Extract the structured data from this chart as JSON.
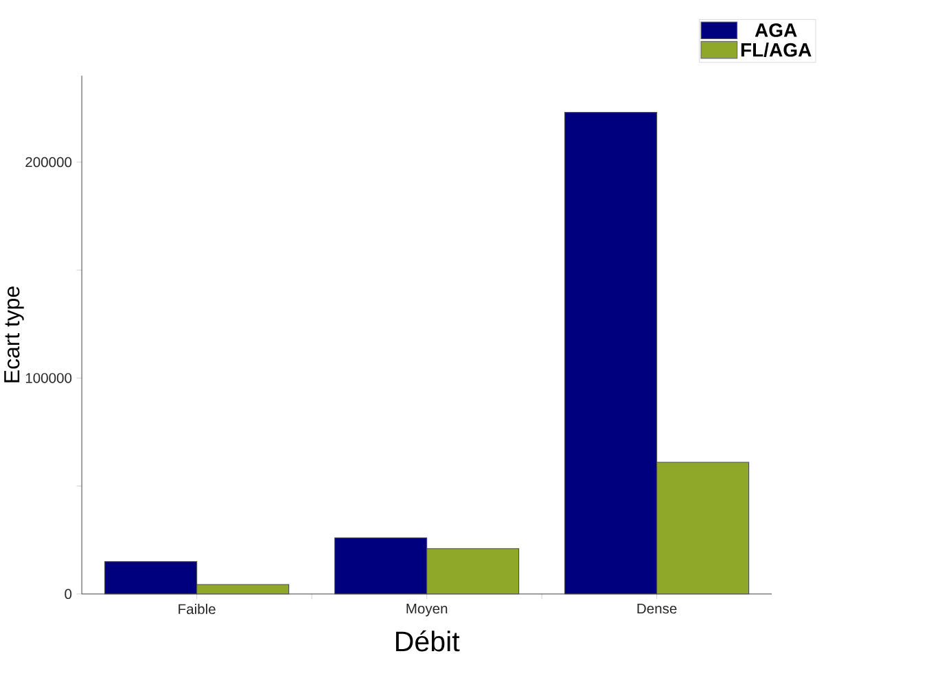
{
  "chart_data": {
    "type": "bar",
    "xlabel": "Débit",
    "ylabel": "Ecart type",
    "categories": [
      "Faible",
      "Moyen",
      "Dense"
    ],
    "series": [
      {
        "name": "AGA",
        "color": "#00007f",
        "values": [
          15000,
          26000,
          223000
        ]
      },
      {
        "name": "FL/AGA",
        "color": "#8fa82a",
        "values": [
          4400,
          21000,
          61000
        ]
      }
    ],
    "ylim": [
      0,
      240000
    ],
    "yticks": [
      0,
      {
        "value": 50000,
        "label": null
      },
      100000,
      {
        "value": 150000,
        "label": null
      },
      200000
    ],
    "grid": false,
    "legend": "top right"
  }
}
